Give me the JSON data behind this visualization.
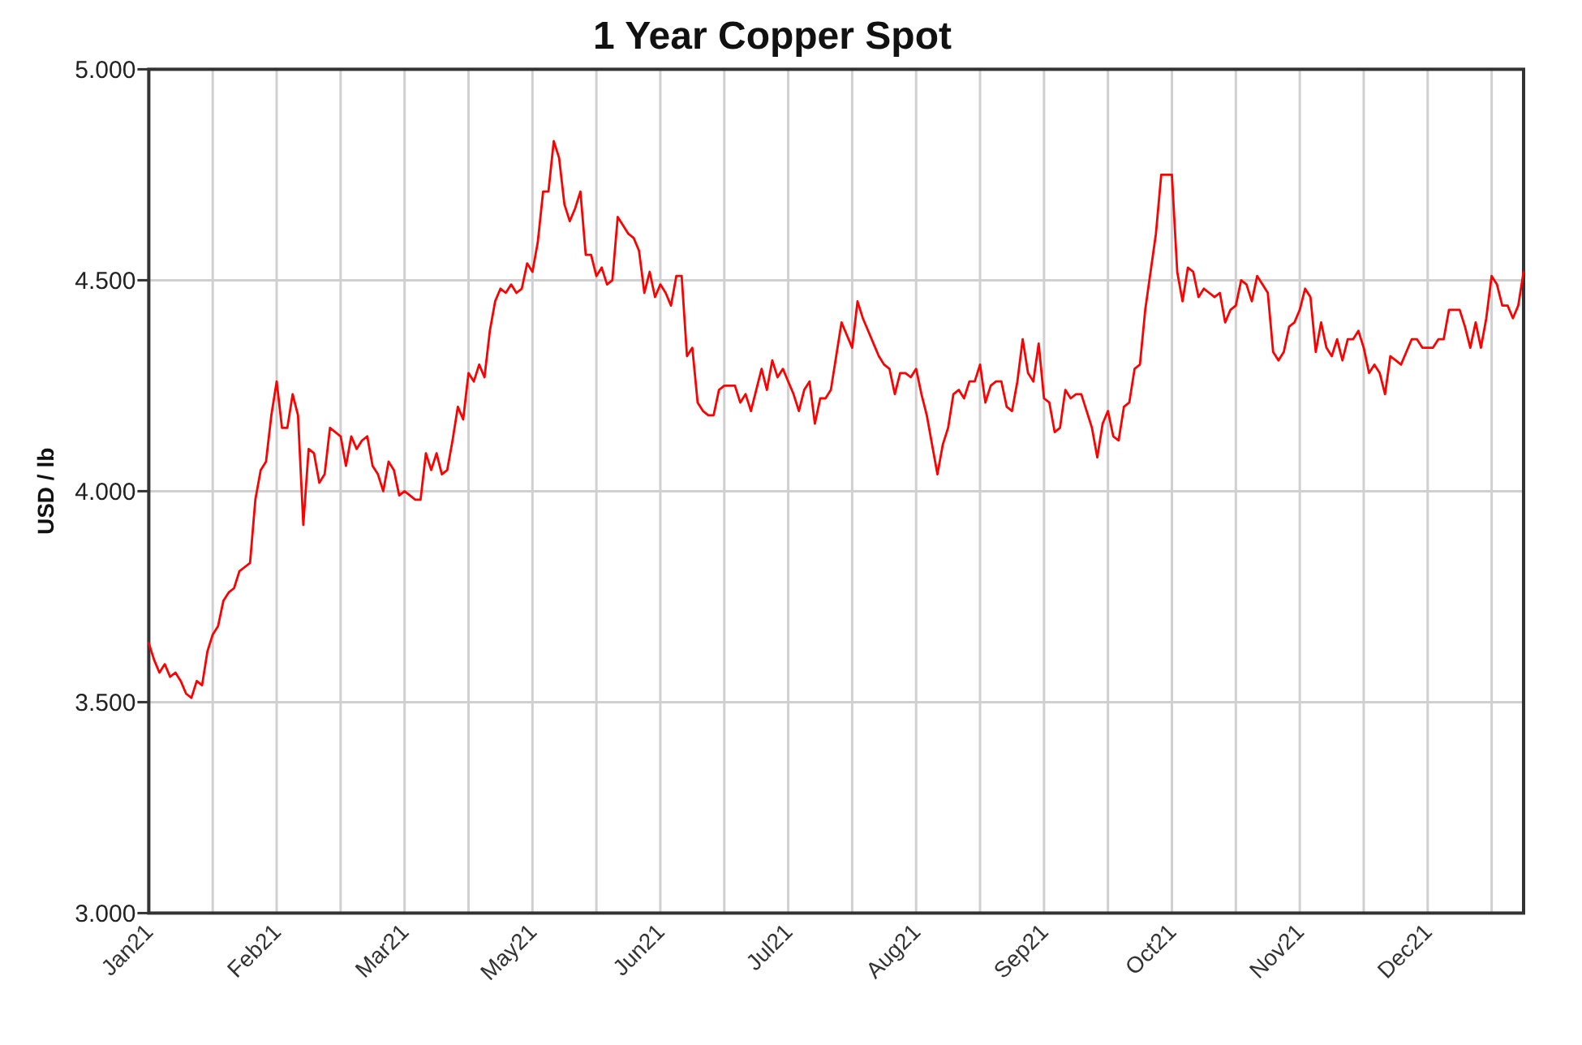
{
  "chart_data": {
    "type": "line",
    "title": "1 Year Copper Spot",
    "ylabel": "USD / lb",
    "categories": [
      "Jan21",
      null,
      null,
      null,
      null,
      null,
      null,
      null,
      null,
      null,
      null,
      null,
      null,
      null,
      null,
      null,
      null,
      null,
      null,
      null,
      null,
      null,
      null,
      null,
      "Feb21",
      null,
      null,
      null,
      null,
      null,
      null,
      null,
      null,
      null,
      null,
      null,
      null,
      null,
      null,
      null,
      null,
      null,
      null,
      null,
      null,
      null,
      null,
      null,
      "Mar21",
      null,
      null,
      null,
      null,
      null,
      null,
      null,
      null,
      null,
      null,
      null,
      null,
      null,
      null,
      null,
      null,
      null,
      null,
      null,
      null,
      null,
      null,
      null,
      "May21",
      null,
      null,
      null,
      null,
      null,
      null,
      null,
      null,
      null,
      null,
      null,
      null,
      null,
      null,
      null,
      null,
      null,
      null,
      null,
      null,
      null,
      null,
      null,
      "Jun21",
      null,
      null,
      null,
      null,
      null,
      null,
      null,
      null,
      null,
      null,
      null,
      null,
      null,
      null,
      null,
      null,
      null,
      null,
      null,
      null,
      null,
      null,
      null,
      "Jul21",
      null,
      null,
      null,
      null,
      null,
      null,
      null,
      null,
      null,
      null,
      null,
      null,
      null,
      null,
      null,
      null,
      null,
      null,
      null,
      null,
      null,
      null,
      null,
      "Aug21",
      null,
      null,
      null,
      null,
      null,
      null,
      null,
      null,
      null,
      null,
      null,
      null,
      null,
      null,
      null,
      null,
      null,
      null,
      null,
      null,
      null,
      null,
      null,
      "Sep21",
      null,
      null,
      null,
      null,
      null,
      null,
      null,
      null,
      null,
      null,
      null,
      null,
      null,
      null,
      null,
      null,
      null,
      null,
      null,
      null,
      null,
      null,
      null,
      "Oct21",
      null,
      null,
      null,
      null,
      null,
      null,
      null,
      null,
      null,
      null,
      null,
      null,
      null,
      null,
      null,
      null,
      null,
      null,
      null,
      null,
      null,
      null,
      null,
      "Nov21",
      null,
      null,
      null,
      null,
      null,
      null,
      null,
      null,
      null,
      null,
      null,
      null,
      null,
      null,
      null,
      null,
      null,
      null,
      null,
      null,
      null,
      null,
      null,
      "Dec21",
      null,
      null,
      null,
      null,
      null,
      null,
      null,
      null,
      null,
      null,
      null,
      null,
      null,
      null,
      null,
      null,
      null,
      null
    ],
    "ylim": [
      3,
      5
    ],
    "yticks": [
      {
        "value": 3,
        "label": "3.000"
      },
      {
        "value": 3.5,
        "label": "3.500"
      },
      {
        "value": 4,
        "label": "4.000"
      },
      {
        "value": 4.5,
        "label": "4.500"
      },
      {
        "value": 5,
        "label": "5.000"
      }
    ],
    "grid": true,
    "series": [
      {
        "color": "#ff0000",
        "values": [
          3.64,
          3.6,
          3.57,
          3.59,
          3.56,
          3.57,
          3.55,
          3.52,
          3.51,
          3.55,
          3.54,
          3.62,
          3.66,
          3.68,
          3.74,
          3.76,
          3.77,
          3.81,
          3.82,
          3.83,
          3.98,
          4.05,
          4.07,
          4.18,
          4.26,
          4.15,
          4.15,
          4.23,
          4.18,
          3.92,
          4.1,
          4.09,
          4.02,
          4.04,
          4.15,
          4.14,
          4.13,
          4.06,
          4.13,
          4.1,
          4.12,
          4.13,
          4.06,
          4.04,
          4.0,
          4.07,
          4.05,
          3.99,
          4.0,
          3.99,
          3.98,
          3.98,
          4.09,
          4.05,
          4.09,
          4.04,
          4.05,
          4.12,
          4.2,
          4.17,
          4.28,
          4.26,
          4.3,
          4.27,
          4.38,
          4.45,
          4.48,
          4.47,
          4.49,
          4.47,
          4.48,
          4.54,
          4.52,
          4.59,
          4.71,
          4.71,
          4.83,
          4.79,
          4.68,
          4.64,
          4.67,
          4.71,
          4.56,
          4.56,
          4.51,
          4.53,
          4.49,
          4.5,
          4.65,
          4.63,
          4.61,
          4.6,
          4.57,
          4.47,
          4.52,
          4.46,
          4.49,
          4.47,
          4.44,
          4.51,
          4.51,
          4.32,
          4.34,
          4.21,
          4.19,
          4.18,
          4.18,
          4.24,
          4.25,
          4.25,
          4.25,
          4.21,
          4.23,
          4.19,
          4.24,
          4.29,
          4.24,
          4.31,
          4.27,
          4.29,
          4.26,
          4.23,
          4.19,
          4.24,
          4.26,
          4.16,
          4.22,
          4.22,
          4.24,
          4.32,
          4.4,
          4.37,
          4.34,
          4.45,
          4.41,
          4.38,
          4.35,
          4.32,
          4.3,
          4.29,
          4.23,
          4.28,
          4.28,
          4.27,
          4.29,
          4.23,
          4.18,
          4.11,
          4.04,
          4.11,
          4.15,
          4.23,
          4.24,
          4.22,
          4.26,
          4.26,
          4.3,
          4.21,
          4.25,
          4.26,
          4.26,
          4.2,
          4.19,
          4.26,
          4.36,
          4.28,
          4.26,
          4.35,
          4.22,
          4.21,
          4.14,
          4.15,
          4.24,
          4.22,
          4.23,
          4.23,
          4.19,
          4.15,
          4.08,
          4.16,
          4.19,
          4.13,
          4.12,
          4.2,
          4.21,
          4.29,
          4.3,
          4.43,
          4.52,
          4.61,
          4.75,
          4.75,
          4.75,
          4.52,
          4.45,
          4.53,
          4.52,
          4.46,
          4.48,
          4.47,
          4.46,
          4.47,
          4.4,
          4.43,
          4.44,
          4.5,
          4.49,
          4.45,
          4.51,
          4.49,
          4.47,
          4.33,
          4.31,
          4.33,
          4.39,
          4.4,
          4.43,
          4.48,
          4.46,
          4.33,
          4.4,
          4.34,
          4.32,
          4.36,
          4.31,
          4.36,
          4.36,
          4.38,
          4.34,
          4.28,
          4.3,
          4.28,
          4.23,
          4.32,
          4.31,
          4.3,
          4.33,
          4.36,
          4.36,
          4.34,
          4.34,
          4.34,
          4.36,
          4.36,
          4.43,
          4.43,
          4.43,
          4.39,
          4.34,
          4.4,
          4.34,
          4.41,
          4.51,
          4.49,
          4.44,
          4.44,
          4.41,
          4.44,
          4.52
        ]
      }
    ]
  }
}
